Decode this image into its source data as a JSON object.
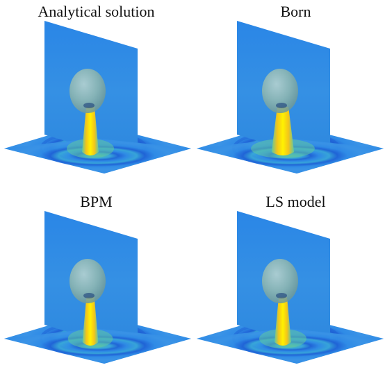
{
  "panels": [
    {
      "title": "Analytical solution",
      "beam_scale": 1.0
    },
    {
      "title": "Born",
      "beam_scale": 1.35
    },
    {
      "title": "BPM",
      "beam_scale": 0.95
    },
    {
      "title": "LS model",
      "beam_scale": 1.0
    }
  ],
  "colors": {
    "background_field": "#2f8be6",
    "ring_dark": "#1f62d6",
    "ring_light": "#38a8d8",
    "beam_core": "#fff200",
    "beam_mid": "#f3c51a",
    "beam_edge": "#5ec6a2",
    "sphere": "#8fb7b0"
  }
}
